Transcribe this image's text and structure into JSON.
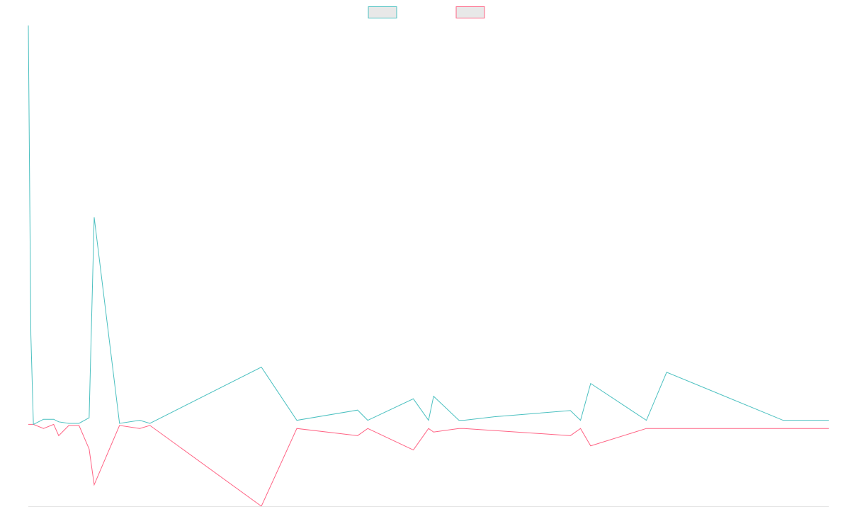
{
  "chart_data": {
    "type": "line",
    "title": "",
    "xlabel": "",
    "ylabel": "",
    "x_count": 158,
    "ylim": [
      -160,
      780
    ],
    "grid": false,
    "legend_position": "top-center",
    "series": [
      {
        "name": "",
        "color": "#4bc0c0",
        "fill": "#e8e8e8",
        "points": [
          [
            0,
            780
          ],
          [
            0.5,
            175
          ],
          [
            1,
            0
          ],
          [
            3,
            10
          ],
          [
            5,
            10
          ],
          [
            6,
            5
          ],
          [
            8,
            2
          ],
          [
            9,
            2
          ],
          [
            10,
            2
          ],
          [
            12,
            13
          ],
          [
            13,
            405
          ],
          [
            18,
            2
          ],
          [
            22,
            8
          ],
          [
            24,
            2
          ],
          [
            46,
            112
          ],
          [
            53,
            8
          ],
          [
            65,
            28
          ],
          [
            67,
            8
          ],
          [
            76,
            50
          ],
          [
            79,
            8
          ],
          [
            80,
            55
          ],
          [
            85,
            8
          ],
          [
            86,
            8
          ],
          [
            92,
            15
          ],
          [
            107,
            27
          ],
          [
            109,
            8
          ],
          [
            111,
            80
          ],
          [
            122,
            8
          ],
          [
            126,
            102
          ],
          [
            149,
            8
          ],
          [
            152,
            8
          ],
          [
            154,
            8
          ],
          [
            158,
            8
          ]
        ]
      },
      {
        "name": "",
        "color": "#ff6384",
        "fill": "#e8e8e8",
        "points": [
          [
            0,
            0
          ],
          [
            1,
            0
          ],
          [
            3,
            -8
          ],
          [
            5,
            0
          ],
          [
            6,
            -22
          ],
          [
            8,
            -2
          ],
          [
            9,
            -2
          ],
          [
            10,
            -2
          ],
          [
            12,
            -48
          ],
          [
            13,
            -118
          ],
          [
            18,
            -2
          ],
          [
            22,
            -8
          ],
          [
            24,
            -2
          ],
          [
            46,
            -160
          ],
          [
            53,
            -8
          ],
          [
            65,
            -22
          ],
          [
            67,
            -8
          ],
          [
            76,
            -50
          ],
          [
            79,
            -8
          ],
          [
            80,
            -15
          ],
          [
            85,
            -8
          ],
          [
            86,
            -8
          ],
          [
            92,
            -12
          ],
          [
            107,
            -22
          ],
          [
            109,
            -8
          ],
          [
            111,
            -42
          ],
          [
            122,
            -8
          ],
          [
            126,
            -8
          ],
          [
            149,
            -8
          ],
          [
            152,
            -8
          ],
          [
            154,
            -8
          ],
          [
            158,
            -8
          ]
        ]
      }
    ]
  }
}
